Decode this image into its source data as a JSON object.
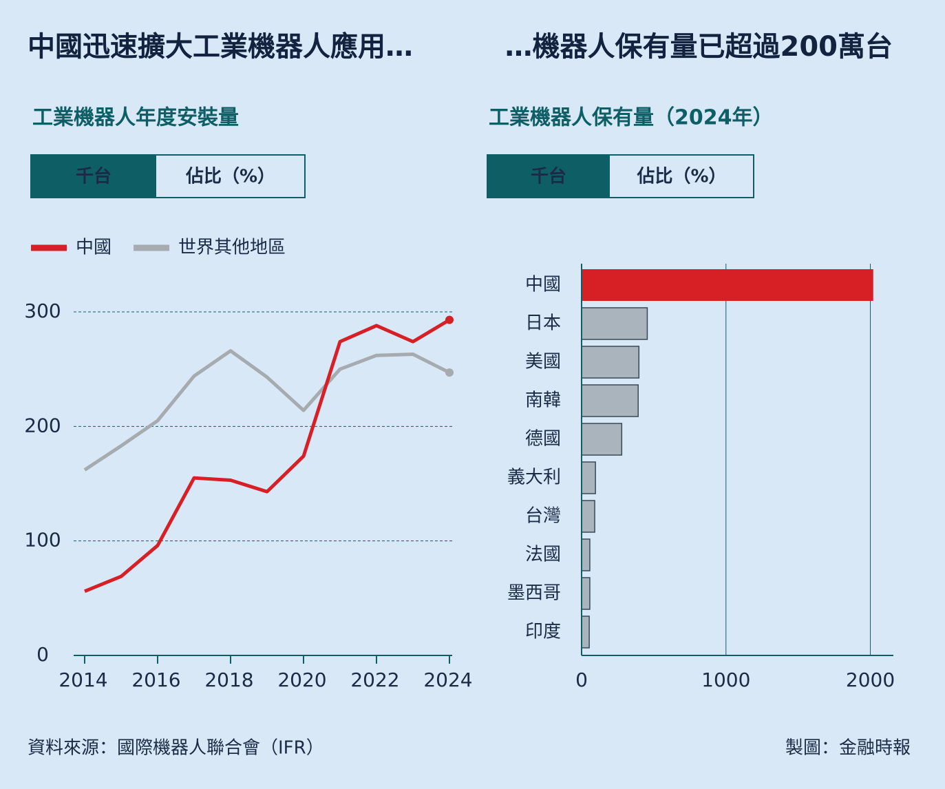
{
  "headline_left": "中國迅速擴大工業機器人應用…",
  "headline_right": "…機器人保有量已超過200萬台",
  "chart_data": [
    {
      "type": "line",
      "title": "工業機器人年度安裝量",
      "tabs": [
        "千台",
        "佔比（%）"
      ],
      "x": [
        2014,
        2015,
        2016,
        2017,
        2018,
        2019,
        2020,
        2021,
        2022,
        2023,
        2024
      ],
      "series": [
        {
          "name": "中國",
          "color": "#d71f26",
          "values": [
            56,
            69,
            96,
            155,
            153,
            143,
            174,
            274,
            288,
            274,
            293
          ]
        },
        {
          "name": "世界其他地區",
          "color": "#a6abb0",
          "values": [
            162,
            183,
            205,
            244,
            266,
            243,
            214,
            250,
            262,
            263,
            247
          ]
        }
      ],
      "xlim": [
        2014,
        2024
      ],
      "xticks": [
        2014,
        2016,
        2018,
        2020,
        2022,
        2024
      ],
      "ylim": [
        0,
        300
      ],
      "yticks": [
        0,
        100,
        200,
        300
      ],
      "grid": true,
      "legend": "top"
    },
    {
      "type": "barh",
      "title": "工業機器人保有量（2024年）",
      "tabs": [
        "千台",
        "佔比（%）"
      ],
      "categories": [
        "中國",
        "日本",
        "美國",
        "南韓",
        "德國",
        "義大利",
        "台灣",
        "法國",
        "墨西哥",
        "印度"
      ],
      "values": [
        2020,
        455,
        397,
        392,
        278,
        96,
        91,
        57,
        57,
        53
      ],
      "colors": [
        "#d71f26",
        "#a9b4bd",
        "#a9b4bd",
        "#a9b4bd",
        "#a9b4bd",
        "#a9b4bd",
        "#a9b4bd",
        "#a9b4bd",
        "#a9b4bd",
        "#a9b4bd"
      ],
      "xlim": [
        0,
        2150
      ],
      "xticks": [
        0,
        1000,
        2000
      ],
      "grid": true
    }
  ],
  "source": "資料來源：國際機器人聯合會（IFR）",
  "credit": "製圖：金融時報"
}
